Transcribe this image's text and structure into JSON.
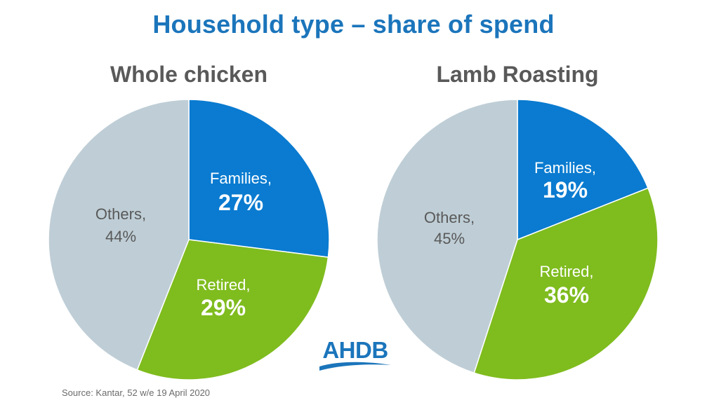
{
  "title": "Household type – share of spend",
  "source": "Source: Kantar, 52 w/e 19 April 2020",
  "logo": {
    "text": "AHDB"
  },
  "colors": {
    "families": "#0a7bd0",
    "retired": "#7fbc1e",
    "others": "#bfced6",
    "title": "#1b75bb",
    "subtitle": "#595959"
  },
  "chart_data": [
    {
      "type": "pie",
      "title": "Whole chicken",
      "slices": [
        {
          "name": "Families,",
          "value": 27,
          "label": "27%",
          "color": "#0a7bd0"
        },
        {
          "name": "Retired,",
          "value": 29,
          "label": "29%",
          "color": "#7fbc1e"
        },
        {
          "name": "Others,",
          "value": 44,
          "label": "44%",
          "color": "#bfced6"
        }
      ]
    },
    {
      "type": "pie",
      "title": "Lamb Roasting",
      "slices": [
        {
          "name": "Families,",
          "value": 19,
          "label": "19%",
          "color": "#0a7bd0"
        },
        {
          "name": "Retired,",
          "value": 36,
          "label": "36%",
          "color": "#7fbc1e"
        },
        {
          "name": "Others,",
          "value": 45,
          "label": "45%",
          "color": "#bfced6"
        }
      ]
    }
  ]
}
